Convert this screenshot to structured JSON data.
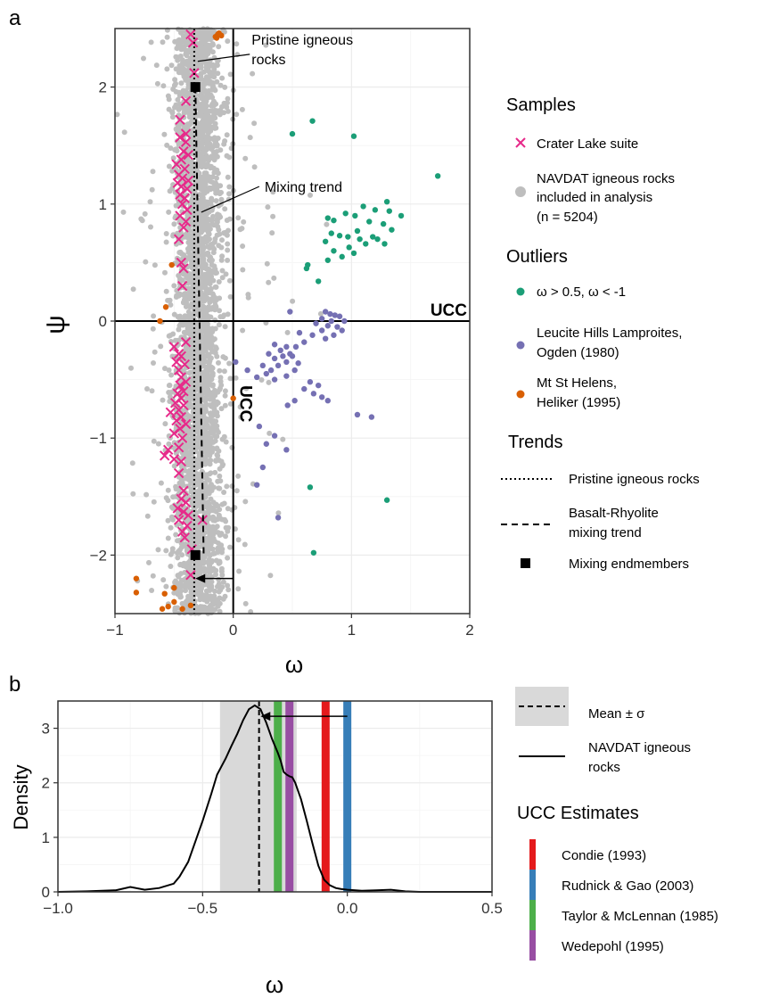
{
  "panel_labels": {
    "a": "a",
    "b": "b"
  },
  "chart_data": [
    {
      "type": "scatter",
      "xlabel": "ω",
      "ylabel": "ψ",
      "xlim": [
        -1,
        2
      ],
      "ylim": [
        -2.5,
        2.5
      ],
      "x_ticks": [
        -1,
        0,
        1,
        2
      ],
      "y_ticks": [
        -2,
        -1,
        0,
        1,
        2
      ],
      "x_tick_labels": [
        "−1",
        "0",
        "1",
        "2"
      ],
      "y_tick_labels": [
        "−2",
        "−1",
        "0",
        "1",
        "2"
      ],
      "reference_lines": {
        "x": 0,
        "y": 0,
        "x_label": "UCC",
        "y_label": "UCC"
      },
      "annotations": [
        {
          "text_lines": [
            "Pristine igneous",
            "rocks"
          ],
          "from": [
            -0.3,
            2.22
          ],
          "to": [
            0.14,
            2.28
          ]
        },
        {
          "text": "Mixing trend",
          "from": [
            -0.27,
            0.93
          ],
          "to": [
            0.22,
            1.15
          ]
        },
        {
          "arrow_from": [
            0.0,
            -2.2
          ],
          "arrow_to": [
            -0.32,
            -2.2
          ]
        }
      ],
      "trends": {
        "pristine": {
          "x": -0.33,
          "y_range": [
            -2.5,
            2.5
          ]
        },
        "mixing": {
          "from": [
            -0.32,
            2.0
          ],
          "to": [
            -0.25,
            -2.0
          ]
        },
        "endmembers": [
          [
            -0.32,
            2.0
          ],
          [
            -0.32,
            -2.0
          ]
        ]
      },
      "navdat_cloud": {
        "name": "NAVDAT igneous rocks included in analysis (n = 5204)",
        "color": "#bebebe",
        "x_center": -0.3,
        "x_spread": 0.1,
        "n_rendered": 3200
      },
      "crater_lake": [
        [
          -0.36,
          2.45
        ],
        [
          -0.34,
          2.38
        ],
        [
          -0.33,
          2.12
        ],
        [
          -0.4,
          1.88
        ],
        [
          -0.45,
          1.72
        ],
        [
          -0.4,
          1.6
        ],
        [
          -0.45,
          1.57
        ],
        [
          -0.4,
          1.53
        ],
        [
          -0.42,
          1.45
        ],
        [
          -0.38,
          1.42
        ],
        [
          -0.44,
          1.38
        ],
        [
          -0.48,
          1.34
        ],
        [
          -0.41,
          1.3
        ],
        [
          -0.46,
          1.25
        ],
        [
          -0.43,
          1.22
        ],
        [
          -0.38,
          1.2
        ],
        [
          -0.47,
          1.18
        ],
        [
          -0.44,
          1.15
        ],
        [
          -0.39,
          1.13
        ],
        [
          -0.45,
          1.08
        ],
        [
          -0.41,
          1.05
        ],
        [
          -0.43,
          1.0
        ],
        [
          -0.39,
          0.95
        ],
        [
          -0.45,
          0.9
        ],
        [
          -0.4,
          0.85
        ],
        [
          -0.42,
          0.8
        ],
        [
          -0.46,
          0.7
        ],
        [
          -0.44,
          0.5
        ],
        [
          -0.42,
          0.45
        ],
        [
          -0.43,
          0.3
        ],
        [
          -0.4,
          -0.18
        ],
        [
          -0.5,
          -0.22
        ],
        [
          -0.46,
          -0.28
        ],
        [
          -0.44,
          -0.3
        ],
        [
          -0.48,
          -0.35
        ],
        [
          -0.41,
          -0.37
        ],
        [
          -0.46,
          -0.42
        ],
        [
          -0.44,
          -0.48
        ],
        [
          -0.4,
          -0.52
        ],
        [
          -0.45,
          -0.55
        ],
        [
          -0.42,
          -0.6
        ],
        [
          -0.47,
          -0.62
        ],
        [
          -0.44,
          -0.66
        ],
        [
          -0.49,
          -0.7
        ],
        [
          -0.42,
          -0.72
        ],
        [
          -0.46,
          -0.76
        ],
        [
          -0.53,
          -0.78
        ],
        [
          -0.44,
          -0.82
        ],
        [
          -0.48,
          -0.85
        ],
        [
          -0.4,
          -0.88
        ],
        [
          -0.45,
          -0.92
        ],
        [
          -0.5,
          -0.96
        ],
        [
          -0.43,
          -1.0
        ],
        [
          -0.46,
          -1.08
        ],
        [
          -0.55,
          -1.1
        ],
        [
          -0.58,
          -1.15
        ],
        [
          -0.5,
          -1.18
        ],
        [
          -0.44,
          -1.2
        ],
        [
          -0.46,
          -1.3
        ],
        [
          -0.42,
          -1.45
        ],
        [
          -0.44,
          -1.52
        ],
        [
          -0.4,
          -1.55
        ],
        [
          -0.47,
          -1.6
        ],
        [
          -0.42,
          -1.63
        ],
        [
          -0.38,
          -1.66
        ],
        [
          -0.46,
          -1.7
        ],
        [
          -0.26,
          -1.7
        ],
        [
          -0.39,
          -1.75
        ],
        [
          -0.43,
          -1.8
        ],
        [
          -0.41,
          -1.85
        ],
        [
          -0.35,
          -1.95
        ],
        [
          -0.36,
          -2.17
        ]
      ],
      "outliers_teal": [
        [
          0.5,
          1.6
        ],
        [
          0.67,
          1.71
        ],
        [
          1.02,
          1.58
        ],
        [
          1.73,
          1.24
        ],
        [
          1.3,
          1.02
        ],
        [
          1.1,
          0.98
        ],
        [
          1.2,
          0.95
        ],
        [
          1.32,
          0.94
        ],
        [
          1.42,
          0.9
        ],
        [
          0.95,
          0.92
        ],
        [
          1.03,
          0.9
        ],
        [
          0.8,
          0.88
        ],
        [
          0.85,
          0.86
        ],
        [
          1.15,
          0.85
        ],
        [
          1.27,
          0.83
        ],
        [
          1.34,
          0.78
        ],
        [
          1.05,
          0.77
        ],
        [
          0.83,
          0.75
        ],
        [
          0.9,
          0.73
        ],
        [
          0.97,
          0.72
        ],
        [
          1.18,
          0.72
        ],
        [
          1.07,
          0.7
        ],
        [
          1.22,
          0.7
        ],
        [
          0.78,
          0.68
        ],
        [
          1.28,
          0.66
        ],
        [
          1.12,
          0.66
        ],
        [
          0.98,
          0.63
        ],
        [
          0.85,
          0.6
        ],
        [
          1.02,
          0.58
        ],
        [
          0.92,
          0.55
        ],
        [
          0.8,
          0.52
        ],
        [
          0.63,
          0.48
        ],
        [
          0.62,
          0.45
        ],
        [
          0.72,
          0.34
        ],
        [
          0.65,
          -1.42
        ],
        [
          1.3,
          -1.53
        ],
        [
          0.68,
          -1.98
        ]
      ],
      "outliers_purple": [
        [
          0.48,
          0.08
        ],
        [
          0.78,
          0.08
        ],
        [
          0.82,
          0.06
        ],
        [
          0.86,
          0.05
        ],
        [
          0.9,
          0.04
        ],
        [
          0.75,
          0.02
        ],
        [
          0.83,
          0.0
        ],
        [
          0.94,
          0.0
        ],
        [
          0.7,
          -0.02
        ],
        [
          0.8,
          -0.04
        ],
        [
          0.88,
          -0.05
        ],
        [
          0.75,
          -0.08
        ],
        [
          0.92,
          -0.08
        ],
        [
          0.56,
          -0.1
        ],
        [
          0.67,
          -0.12
        ],
        [
          0.85,
          -0.12
        ],
        [
          0.78,
          -0.15
        ],
        [
          0.6,
          -0.18
        ],
        [
          0.35,
          -0.2
        ],
        [
          0.45,
          -0.22
        ],
        [
          0.53,
          -0.22
        ],
        [
          0.4,
          -0.25
        ],
        [
          0.48,
          -0.28
        ],
        [
          0.3,
          -0.28
        ],
        [
          0.42,
          -0.3
        ],
        [
          0.5,
          -0.3
        ],
        [
          0.35,
          -0.32
        ],
        [
          0.45,
          -0.35
        ],
        [
          0.55,
          -0.36
        ],
        [
          0.25,
          -0.38
        ],
        [
          0.38,
          -0.38
        ],
        [
          0.32,
          -0.42
        ],
        [
          0.52,
          -0.42
        ],
        [
          0.28,
          -0.45
        ],
        [
          0.45,
          -0.47
        ],
        [
          0.2,
          -0.48
        ],
        [
          0.35,
          -0.5
        ],
        [
          0.65,
          -0.52
        ],
        [
          0.72,
          -0.55
        ],
        [
          0.6,
          -0.58
        ],
        [
          0.68,
          -0.62
        ],
        [
          0.75,
          -0.65
        ],
        [
          0.52,
          -0.68
        ],
        [
          0.8,
          -0.68
        ],
        [
          0.46,
          -0.72
        ],
        [
          0.02,
          -0.35
        ],
        [
          0.12,
          -0.42
        ],
        [
          1.05,
          -0.8
        ],
        [
          1.17,
          -0.82
        ],
        [
          0.35,
          -0.98
        ],
        [
          0.28,
          -1.05
        ],
        [
          0.45,
          -1.1
        ],
        [
          0.25,
          -1.25
        ],
        [
          0.2,
          -1.4
        ],
        [
          0.38,
          -1.68
        ],
        [
          0.22,
          -0.9
        ]
      ],
      "outliers_orange": [
        [
          -0.13,
          2.45
        ],
        [
          -0.1,
          2.44
        ],
        [
          -0.14,
          2.42
        ],
        [
          -0.12,
          2.46
        ],
        [
          -0.15,
          2.43
        ],
        [
          -0.52,
          0.48
        ],
        [
          -0.57,
          0.12
        ],
        [
          -0.62,
          0.0
        ],
        [
          0.0,
          -0.66
        ],
        [
          -0.82,
          -2.2
        ],
        [
          -0.82,
          -2.32
        ],
        [
          -0.5,
          -2.28
        ],
        [
          -0.58,
          -2.33
        ],
        [
          -0.6,
          -2.46
        ],
        [
          -0.55,
          -2.44
        ],
        [
          -0.43,
          -2.46
        ],
        [
          -0.5,
          -2.4
        ],
        [
          -0.36,
          -2.43
        ]
      ]
    },
    {
      "type": "area",
      "xlabel": "ω",
      "ylabel": "Density",
      "xlim": [
        -1.0,
        0.5
      ],
      "ylim": [
        0,
        3.5
      ],
      "x_ticks": [
        -1.0,
        -0.5,
        0.0,
        0.5
      ],
      "y_ticks": [
        0,
        1,
        2,
        3
      ],
      "x_tick_labels": [
        "−1.0",
        "−0.5",
        "0.0",
        "0.5"
      ],
      "y_tick_labels": [
        "0",
        "1",
        "2",
        "3"
      ],
      "mean": -0.305,
      "sigma_band": [
        -0.44,
        -0.175
      ],
      "arrow": {
        "from": [
          0.0,
          3.22
        ],
        "to": [
          -0.3,
          3.22
        ]
      },
      "density_curve": {
        "x": [
          -1.0,
          -0.9,
          -0.8,
          -0.75,
          -0.7,
          -0.65,
          -0.6,
          -0.58,
          -0.55,
          -0.52,
          -0.5,
          -0.47,
          -0.45,
          -0.42,
          -0.4,
          -0.38,
          -0.36,
          -0.34,
          -0.32,
          -0.3,
          -0.28,
          -0.26,
          -0.24,
          -0.23,
          -0.22,
          -0.21,
          -0.2,
          -0.19,
          -0.18,
          -0.16,
          -0.14,
          -0.12,
          -0.1,
          -0.08,
          -0.06,
          -0.04,
          -0.02,
          0.0,
          0.05,
          0.1,
          0.15,
          0.2,
          0.25,
          0.3,
          0.5
        ],
        "y": [
          0.0,
          0.01,
          0.03,
          0.09,
          0.04,
          0.07,
          0.15,
          0.28,
          0.55,
          1.0,
          1.3,
          1.8,
          2.15,
          2.45,
          2.68,
          2.9,
          3.15,
          3.35,
          3.42,
          3.35,
          3.1,
          2.8,
          2.55,
          2.4,
          2.2,
          2.15,
          2.12,
          2.1,
          2.0,
          1.7,
          1.3,
          0.88,
          0.48,
          0.22,
          0.12,
          0.07,
          0.05,
          0.04,
          0.02,
          0.03,
          0.04,
          0.01,
          0.0,
          0.0,
          0.0
        ]
      },
      "ucc_estimates": [
        {
          "name": "Condie (1993)",
          "x": -0.075,
          "color": "#e41a1c"
        },
        {
          "name": "Rudnick & Gao (2003)",
          "x": 0.0,
          "color": "#377eb8"
        },
        {
          "name": "Taylor & McLennan (1985)",
          "x": -0.24,
          "color": "#4daf4a"
        },
        {
          "name": "Wedepohl (1995)",
          "x": -0.2,
          "color": "#984ea3"
        }
      ]
    }
  ],
  "legend_a": {
    "samples_title": "Samples",
    "crater_label": "Crater Lake suite",
    "navdat_lines": [
      "NAVDAT igneous rocks",
      "included in analysis",
      "(n = 5204)"
    ],
    "outliers_title": "Outliers",
    "teal_label": "ω  > 0.5,  ω  < -1",
    "purple_lines": [
      "Leucite Hills Lamproites,",
      "Ogden (1980)"
    ],
    "orange_lines": [
      "Mt St Helens,",
      "Heliker (1995)"
    ],
    "trends_title": "Trends",
    "pristine_label": "Pristine igneous rocks",
    "mixing_lines": [
      "Basalt-Rhyolite",
      "mixing trend"
    ],
    "endmembers_label": "Mixing endmembers"
  },
  "legend_b": {
    "mean_label": "Mean ± σ",
    "navdat_lines": [
      "NAVDAT igneous",
      "rocks"
    ],
    "ucc_title": "UCC Estimates"
  },
  "colors": {
    "crater": "#e7298a",
    "teal": "#1b9e77",
    "purple": "#7570b3",
    "orange": "#d95f02",
    "navdat": "#bebebe",
    "band": "#d9d9d9"
  }
}
